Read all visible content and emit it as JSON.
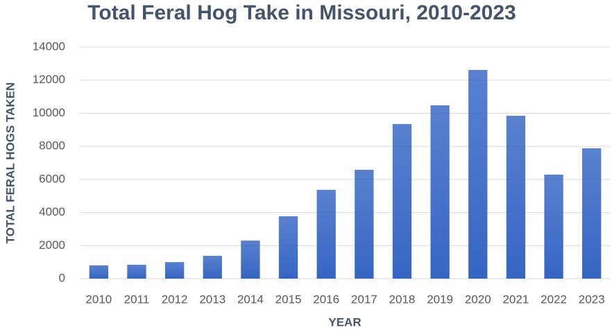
{
  "chart_data": {
    "type": "bar",
    "title": "Total Feral Hog Take in Missouri, 2010-2023",
    "x_label": "YEAR",
    "y_label": "TOTAL FERAL HOGS TAKEN",
    "categories": [
      "2010",
      "2011",
      "2012",
      "2013",
      "2014",
      "2015",
      "2016",
      "2017",
      "2018",
      "2019",
      "2020",
      "2021",
      "2022",
      "2023"
    ],
    "values": [
      800,
      840,
      1000,
      1380,
      2300,
      3770,
      5370,
      6580,
      9350,
      10480,
      12620,
      9850,
      6290,
      7880
    ],
    "color": "#3565c4",
    "ylim": [
      0,
      14000
    ],
    "yticks": [
      0,
      2000,
      4000,
      6000,
      8000,
      10000,
      12000,
      14000
    ],
    "grid": true
  }
}
